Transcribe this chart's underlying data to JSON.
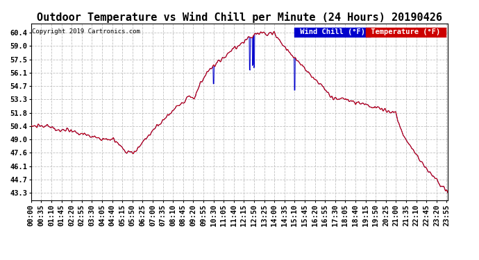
{
  "title": "Outdoor Temperature vs Wind Chill per Minute (24 Hours) 20190426",
  "copyright": "Copyright 2019 Cartronics.com",
  "legend_wind_chill": "Wind Chill (°F)",
  "legend_temperature": "Temperature (°F)",
  "ylim_min": 42.5,
  "ylim_max": 61.4,
  "yticks": [
    43.3,
    44.7,
    46.1,
    47.6,
    49.0,
    50.4,
    51.8,
    53.3,
    54.7,
    56.1,
    57.5,
    59.0,
    60.4
  ],
  "background_color": "#ffffff",
  "plot_bg_color": "#ffffff",
  "grid_color": "#c0c0c0",
  "temp_color": "#cc0000",
  "wind_color": "#0000cc",
  "title_fontsize": 11,
  "tick_fontsize": 7.5,
  "num_minutes": 1440,
  "x_tick_labels": [
    "00:00",
    "00:35",
    "01:10",
    "01:45",
    "02:20",
    "02:55",
    "03:30",
    "04:05",
    "04:40",
    "05:15",
    "05:50",
    "06:25",
    "07:00",
    "07:35",
    "08:10",
    "08:45",
    "09:20",
    "09:55",
    "10:30",
    "11:05",
    "11:40",
    "12:15",
    "12:50",
    "13:25",
    "14:00",
    "14:35",
    "15:10",
    "15:45",
    "16:20",
    "16:55",
    "17:30",
    "18:05",
    "18:40",
    "19:15",
    "19:50",
    "20:25",
    "21:00",
    "21:35",
    "22:10",
    "22:45",
    "23:20",
    "23:55"
  ]
}
